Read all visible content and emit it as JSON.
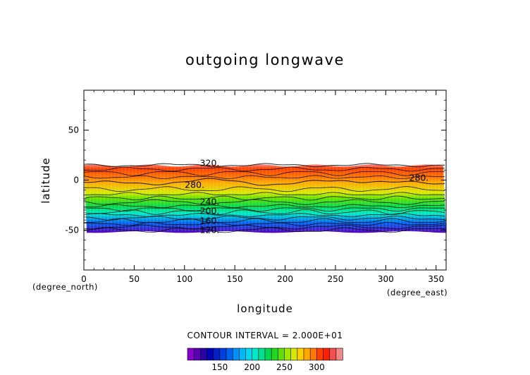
{
  "chart_data": {
    "type": "heatmap",
    "title": "outgoing longwave",
    "xlabel": "longitude",
    "ylabel": "latitude",
    "x_unit": "(degree_east)",
    "y_unit": "(degree_north)",
    "xlim": [
      0,
      360
    ],
    "ylim": [
      -90,
      90
    ],
    "x_ticks": [
      0,
      50,
      100,
      150,
      200,
      250,
      300,
      350
    ],
    "y_ticks": [
      -50,
      0,
      50
    ],
    "data_lat_range": [
      -52,
      16
    ],
    "field_profile": [
      {
        "lat": 16,
        "value": 330
      },
      {
        "lat": 12,
        "value": 300
      },
      {
        "lat": 3,
        "value": 290
      },
      {
        "lat": -2,
        "value": 280
      },
      {
        "lat": -12,
        "value": 260
      },
      {
        "lat": -18,
        "value": 240
      },
      {
        "lat": -26,
        "value": 220
      },
      {
        "lat": -33,
        "value": 200
      },
      {
        "lat": -42,
        "value": 160
      },
      {
        "lat": -52,
        "value": 110
      }
    ],
    "contour_labels": [
      {
        "text": "320.",
        "lon": 125,
        "lat": 17
      },
      {
        "text": "280.",
        "lon": 110,
        "lat": -5
      },
      {
        "text": "280.",
        "lon": 333,
        "lat": 2
      },
      {
        "text": "240.",
        "lon": 125,
        "lat": -22
      },
      {
        "text": "200.",
        "lon": 125,
        "lat": -31
      },
      {
        "text": "160.",
        "lon": 125,
        "lat": -41
      },
      {
        "text": "120.",
        "lon": 125,
        "lat": -50
      }
    ],
    "contour_interval_text": "CONTOUR INTERVAL = 2.000E+01",
    "colorbar": {
      "min": 100,
      "max": 340,
      "ticks": [
        150,
        200,
        250,
        300
      ],
      "colors": [
        "#8800cc",
        "#5a00b4",
        "#2a00a8",
        "#0000b4",
        "#0020c8",
        "#0040dc",
        "#0064f0",
        "#0090f8",
        "#00b8f8",
        "#00d8f0",
        "#00e8c8",
        "#00e090",
        "#00d850",
        "#20d820",
        "#60e000",
        "#a0e800",
        "#d8e800",
        "#ffd000",
        "#ffa800",
        "#ff7800",
        "#ff4000",
        "#ff2000",
        "#f05050",
        "#f08888"
      ]
    }
  }
}
